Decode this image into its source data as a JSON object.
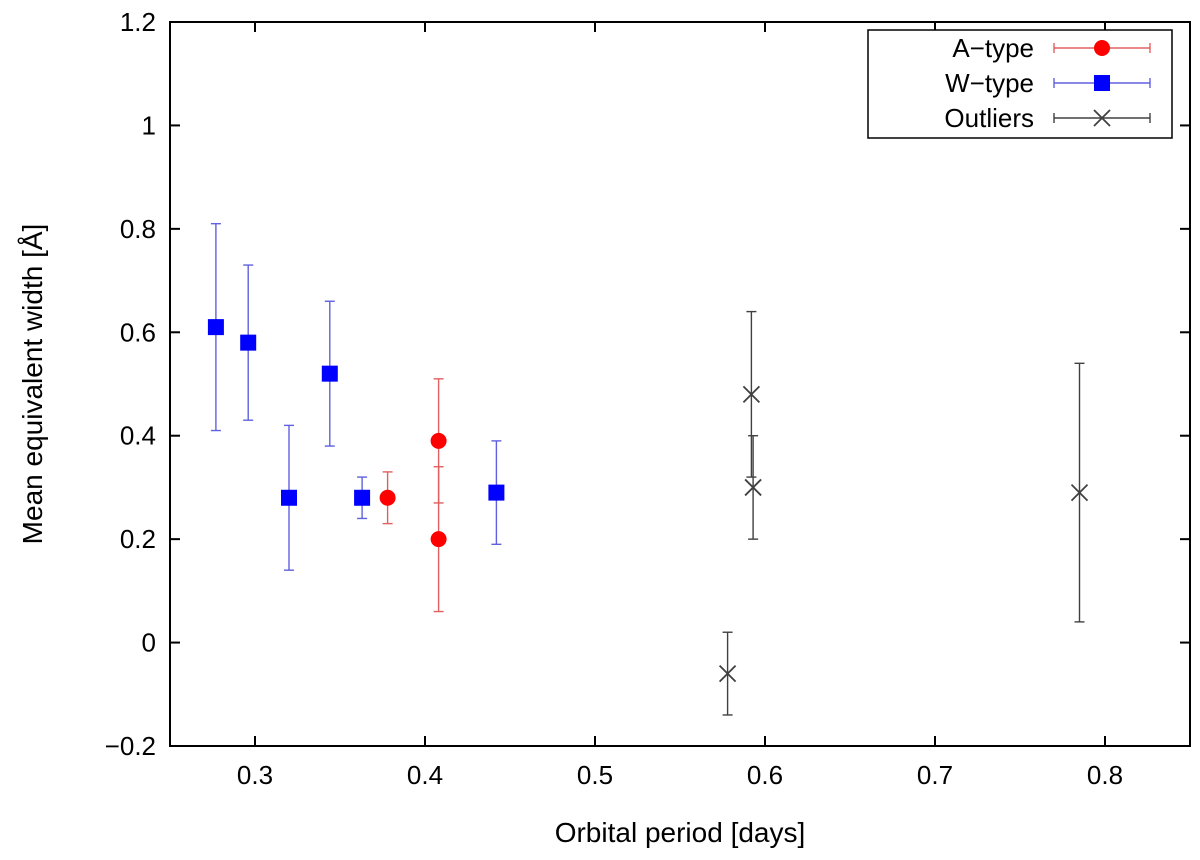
{
  "chart_data": {
    "type": "scatter",
    "xlabel": "Orbital period [days]",
    "ylabel": "Mean equivalent width [Å]",
    "xlim": [
      0.25,
      0.85
    ],
    "ylim": [
      -0.2,
      1.2
    ],
    "xticks": [
      0.3,
      0.4,
      0.5,
      0.6,
      0.7,
      0.8
    ],
    "yticks": [
      -0.2,
      0,
      0.2,
      0.4,
      0.6,
      0.8,
      1,
      1.2
    ],
    "xtick_labels": [
      "0.3",
      "0.4",
      "0.5",
      "0.6",
      "0.7",
      "0.8"
    ],
    "ytick_labels": [
      "−0.2",
      "0",
      "0.2",
      "0.4",
      "0.6",
      "0.8",
      "1",
      "1.2"
    ],
    "grid": false,
    "legend_position": "top-right",
    "series": [
      {
        "name": "A−type",
        "marker": "circle",
        "color": "#ff0000",
        "points": [
          {
            "x": 0.378,
            "y": 0.28,
            "ylow": 0.23,
            "yhigh": 0.33
          },
          {
            "x": 0.408,
            "y": 0.39,
            "ylow": 0.27,
            "yhigh": 0.51
          },
          {
            "x": 0.408,
            "y": 0.2,
            "ylow": 0.06,
            "yhigh": 0.34
          }
        ]
      },
      {
        "name": "W−type",
        "marker": "square",
        "color": "#0000ff",
        "points": [
          {
            "x": 0.277,
            "y": 0.61,
            "ylow": 0.41,
            "yhigh": 0.81
          },
          {
            "x": 0.296,
            "y": 0.58,
            "ylow": 0.43,
            "yhigh": 0.73
          },
          {
            "x": 0.32,
            "y": 0.28,
            "ylow": 0.14,
            "yhigh": 0.42
          },
          {
            "x": 0.344,
            "y": 0.52,
            "ylow": 0.38,
            "yhigh": 0.66
          },
          {
            "x": 0.363,
            "y": 0.28,
            "ylow": 0.24,
            "yhigh": 0.32
          },
          {
            "x": 0.442,
            "y": 0.29,
            "ylow": 0.19,
            "yhigh": 0.39
          }
        ]
      },
      {
        "name": "Outliers",
        "marker": "x",
        "color": "#404040",
        "points": [
          {
            "x": 0.578,
            "y": -0.06,
            "ylow": -0.14,
            "yhigh": 0.02
          },
          {
            "x": 0.592,
            "y": 0.48,
            "ylow": 0.32,
            "yhigh": 0.64
          },
          {
            "x": 0.593,
            "y": 0.3,
            "ylow": 0.2,
            "yhigh": 0.4
          },
          {
            "x": 0.785,
            "y": 0.29,
            "ylow": 0.04,
            "yhigh": 0.54
          }
        ]
      }
    ]
  }
}
